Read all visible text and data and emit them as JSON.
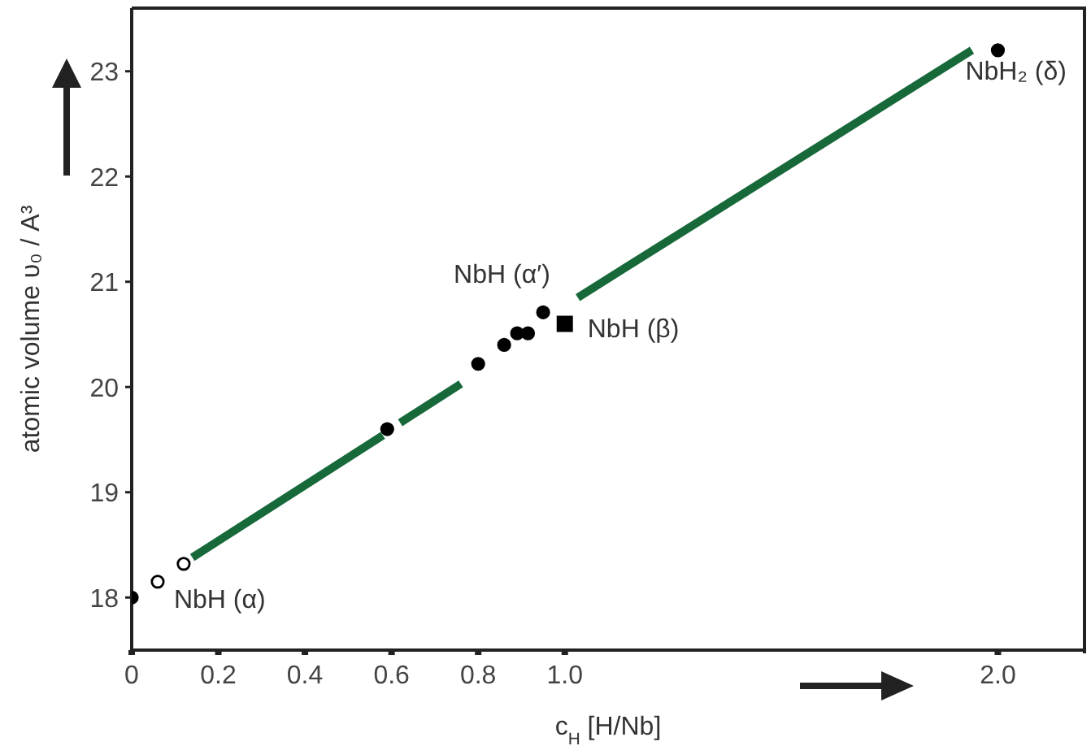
{
  "chart_data": {
    "type": "scatter",
    "xlabel": "c$_{H}$ [H/Nb]",
    "ylabel": "atomic volume υ₀ / A³",
    "xlim": [
      0,
      2.2
    ],
    "xticks": [
      0,
      0.2,
      0.4,
      0.6,
      0.8,
      {
        "value": 1.0,
        "label": "1.0"
      },
      {
        "value": 2.0,
        "label": "2.0"
      }
    ],
    "ylim": [
      17.5,
      23.6
    ],
    "yticks": [
      18,
      19,
      20,
      21,
      22,
      23
    ],
    "grid": false,
    "series": [
      {
        "type": "line",
        "color": "#17693a",
        "line_style": "solid",
        "marker": "none",
        "x": [
          0.14,
          0.58,
          0.6,
          0.62,
          0.76,
          0.9,
          1.03,
          1.94
        ],
        "values": [
          18.38,
          19.54,
          null,
          19.66,
          20.03,
          null,
          20.85,
          23.2
        ]
      },
      {
        "color": "#000000",
        "marker": "circle",
        "x": [
          0,
          0.59,
          0.8,
          0.86,
          0.89,
          0.915,
          0.95
        ],
        "values": [
          18,
          19.6,
          20.22,
          20.4,
          20.51,
          20.51,
          20.71
        ]
      },
      {
        "color": "#ffffff",
        "marker": "circle",
        "x": [
          0.06,
          0.12
        ],
        "values": [
          18.15,
          18.32
        ]
      },
      {
        "color": "#000000",
        "marker": "square",
        "x": [
          1.0
        ],
        "values": [
          20.6
        ]
      },
      {
        "color": "#000000",
        "marker": "circle",
        "x": [
          2.0
        ],
        "values": [
          23.2
        ]
      }
    ],
    "annotations": [
      {
        "text": "NbH (α)",
        "x": 0.12,
        "y": 18.32
      },
      {
        "text": "NbH (α′)",
        "x": 0.95,
        "y": 20.71
      },
      {
        "text": "NbH (β)",
        "x": 1.0,
        "y": 20.6
      },
      {
        "text": "NbH₂ (δ)",
        "x": 2.0,
        "y": 23.2
      }
    ]
  }
}
